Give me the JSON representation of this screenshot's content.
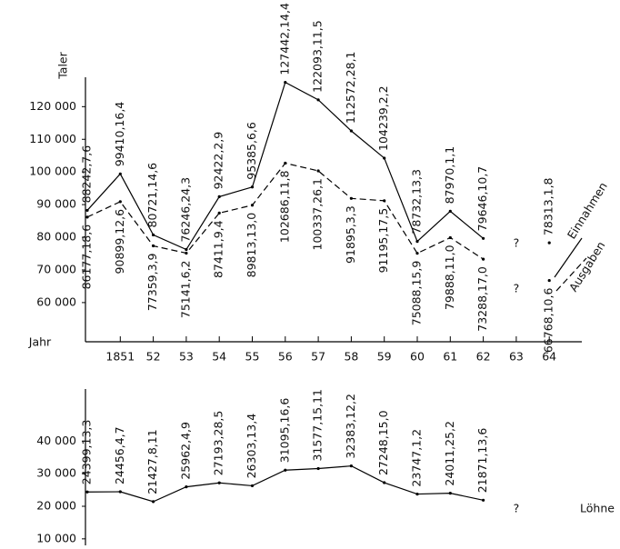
{
  "chart_data": [
    {
      "type": "line",
      "y_label": "Taler",
      "x_label": "Jahr",
      "categories": [
        null,
        "1851",
        "52",
        "53",
        "54",
        "55",
        "56",
        "57",
        "58",
        "59",
        "60",
        "61",
        "62",
        "63",
        "64"
      ],
      "series": [
        {
          "name": "Einnahmen",
          "color": "#000000",
          "line_style": "solid",
          "values": [
            88242,
            99410,
            80721,
            76246,
            92422,
            95385,
            127442,
            122093,
            112572,
            104239,
            78732,
            87970,
            79646,
            null,
            78313
          ],
          "value_labels": [
            "88242,7,6",
            "99410,16,4",
            "80721,14,6",
            "76246,24,3",
            "92422,2,9",
            "95385,6,6",
            "127442,14,4",
            "122093,11,5",
            "112572,28,1",
            "104239,2,2",
            "78732,13,3",
            "87970,1,1",
            "79646,10,7",
            "?",
            "78313,1,8"
          ]
        },
        {
          "name": "Ausgaben",
          "color": "#000000",
          "line_style": "dashed",
          "values": [
            86177,
            90899,
            77359,
            75141,
            87411,
            89813,
            102686,
            100337,
            91895,
            91195,
            75088,
            79888,
            73288,
            null,
            66768
          ],
          "value_labels": [
            "86177,18,6",
            "90899,12,6",
            "77359,3,9",
            "75141,6,2",
            "87411,9,4",
            "89813,13,0",
            "102686,11,8",
            "100337,26,1",
            "91895,3,3",
            "91195,17,5",
            "75088,15,9",
            "79888,11,0",
            "73288,17,0",
            "?",
            "66768,10,6"
          ]
        }
      ],
      "ylim": [
        48000,
        129000
      ],
      "yticks": [
        {
          "value": 60000,
          "label": "60 000"
        },
        {
          "value": 70000,
          "label": "70 000"
        },
        {
          "value": 80000,
          "label": "80 000"
        },
        {
          "value": 90000,
          "label": "90 000"
        },
        {
          "value": 100000,
          "label": "100 000"
        },
        {
          "value": 110000,
          "label": "110 000"
        },
        {
          "value": 120000,
          "label": "120 000"
        }
      ]
    },
    {
      "type": "line",
      "series": [
        {
          "name": "Löhne",
          "color": "#000000",
          "line_style": "solid",
          "values": [
            24399,
            24456,
            21427,
            25962,
            27193,
            26303,
            31095,
            31577,
            32383,
            27248,
            23747,
            24011,
            21871,
            null,
            null
          ],
          "value_labels": [
            "24399,13,3",
            "24456,4,7",
            "21427,8,11",
            "25962,4,9",
            "27193,28,5",
            "26303,13,4",
            "31095,16,6",
            "31577,15,11",
            "32383,12,2",
            "27248,15,0",
            "23747,1,2",
            "24011,25,2",
            "21871,13,6",
            "?",
            null
          ]
        }
      ],
      "ylim": [
        8000,
        56000
      ],
      "yticks": [
        {
          "value": 10000,
          "label": "10 000"
        },
        {
          "value": 20000,
          "label": "20 000"
        },
        {
          "value": 30000,
          "label": "30 000"
        },
        {
          "value": 40000,
          "label": "40 000"
        }
      ]
    }
  ]
}
